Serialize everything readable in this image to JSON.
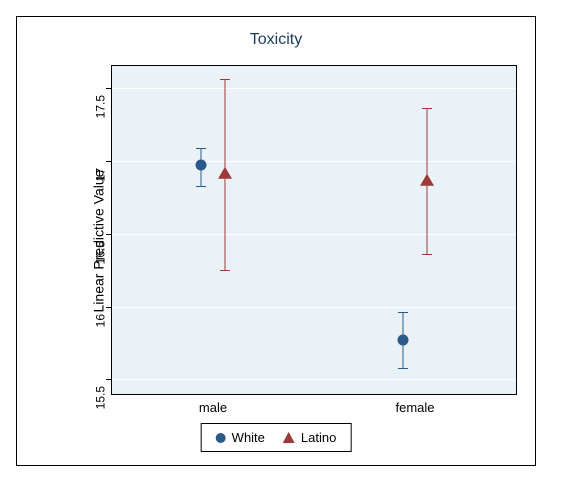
{
  "chart": {
    "type": "errorbar-point",
    "title": "Toxicity",
    "ylabel": "Linear Predictive Value",
    "background_color": "#ffffff",
    "plot_background_color": "#eaf2f8",
    "grid_color": "#ffffff",
    "border_color": "#000000",
    "title_color": "#1f3a5f",
    "title_fontsize": 16,
    "label_fontsize": 14,
    "tick_fontsize": 12,
    "yaxis": {
      "min": 15.4,
      "max": 17.65,
      "ticks": [
        15.5,
        16,
        16.5,
        17,
        17.5
      ],
      "tick_labels": [
        "15.5",
        "16",
        "16.5",
        "17",
        "17.5"
      ]
    },
    "xaxis": {
      "categories": [
        "male",
        "female"
      ],
      "positions": [
        0.25,
        0.75
      ]
    },
    "series": [
      {
        "name": "White",
        "marker": "circle",
        "color": "#2a5a8a",
        "x_offset": -0.03,
        "points": [
          {
            "category": "male",
            "value": 16.97,
            "low": 16.83,
            "high": 17.09
          },
          {
            "category": "female",
            "value": 15.77,
            "low": 15.58,
            "high": 15.96
          }
        ]
      },
      {
        "name": "Latino",
        "marker": "triangle",
        "color": "#9c3a3a",
        "x_offset": 0.03,
        "points": [
          {
            "category": "male",
            "value": 16.91,
            "low": 16.25,
            "high": 17.56
          },
          {
            "category": "female",
            "value": 16.86,
            "low": 16.36,
            "high": 17.36
          }
        ]
      }
    ],
    "legend": {
      "items": [
        "White",
        "Latino"
      ]
    }
  }
}
